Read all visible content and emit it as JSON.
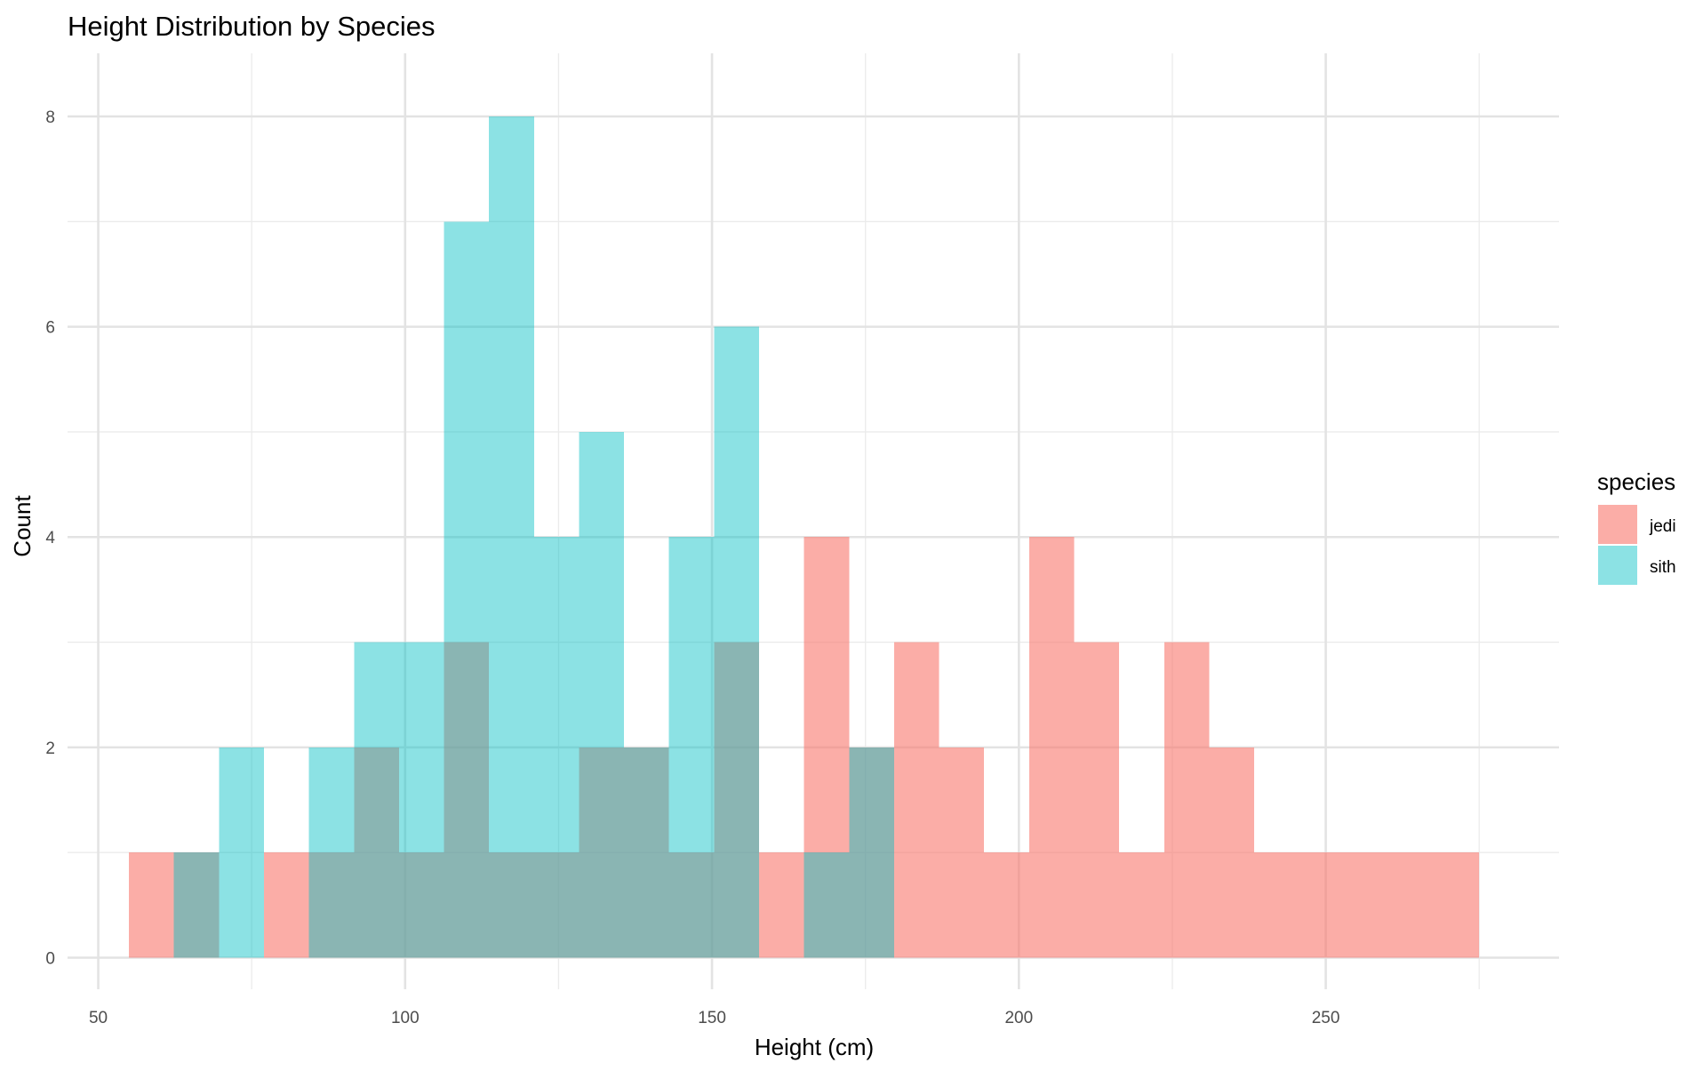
{
  "chart_data": {
    "type": "bar",
    "title": "Height Distribution by Species",
    "xlabel": "Height (cm)",
    "ylabel": "Count",
    "xlim": [
      45,
      288
    ],
    "ylim": [
      -0.3,
      8.6
    ],
    "x_ticks": [
      50,
      100,
      150,
      200,
      250
    ],
    "x_tick_labels": [
      "50",
      "100",
      "150",
      "200",
      "250"
    ],
    "y_ticks": [
      0,
      2,
      4,
      6,
      8
    ],
    "y_tick_labels": [
      "0",
      "2",
      "4",
      "6",
      "8"
    ],
    "x_minor_gridlines": [
      75,
      125,
      175,
      225,
      275
    ],
    "y_minor_gridlines": [
      1,
      3,
      5,
      7
    ],
    "grid": true,
    "legend": {
      "title": "species",
      "position": "right",
      "entries": [
        "jedi",
        "sith"
      ]
    },
    "bin_edges": [
      55.0,
      62.33,
      69.67,
      77.0,
      84.33,
      91.67,
      99.0,
      106.33,
      113.67,
      121.0,
      128.33,
      135.67,
      143.0,
      150.33,
      157.67,
      165.0,
      172.33,
      179.67,
      187.0,
      194.33,
      201.67,
      209.0,
      216.33,
      223.67,
      231.0,
      238.33,
      245.67,
      253.0,
      260.33,
      267.67,
      275.0
    ],
    "series": [
      {
        "name": "jedi",
        "color": "#F8766D",
        "values": [
          1,
          1,
          0,
          1,
          1,
          2,
          1,
          3,
          1,
          1,
          2,
          2,
          1,
          3,
          1,
          4,
          2,
          3,
          2,
          1,
          4,
          3,
          1,
          3,
          2,
          1,
          1,
          1,
          1,
          1
        ]
      },
      {
        "name": "sith",
        "color": "#00BFC4",
        "values": [
          0,
          1,
          2,
          0,
          2,
          3,
          3,
          7,
          8,
          4,
          5,
          2,
          4,
          6,
          0,
          1,
          2,
          0,
          0,
          0,
          0,
          0,
          0,
          0,
          0,
          0,
          0,
          0,
          0,
          0
        ]
      }
    ]
  }
}
